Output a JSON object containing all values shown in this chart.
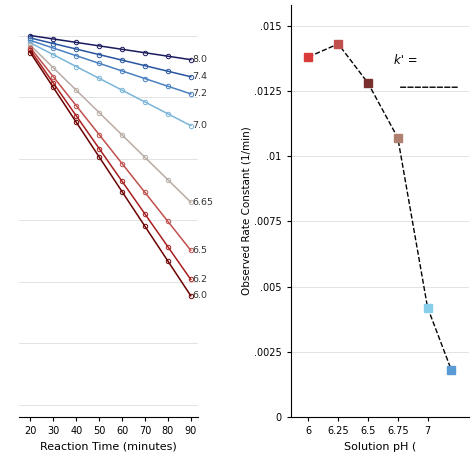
{
  "left_panel": {
    "xlabel": "Reaction Time (minutes)",
    "xlim": [
      15,
      93
    ],
    "ylim": [
      -3.1,
      0.25
    ],
    "xticks": [
      20,
      30,
      40,
      50,
      60,
      70,
      80,
      90
    ],
    "series": [
      {
        "label": "8.0",
        "color": "#1a1a5e",
        "slope": -0.0028,
        "y0": 0.0
      },
      {
        "label": "7.4",
        "color": "#2855a0",
        "slope": -0.0045,
        "y0": -0.02
      },
      {
        "label": "7.2",
        "color": "#4a80c0",
        "slope": -0.0062,
        "y0": -0.04
      },
      {
        "label": "7.0",
        "color": "#7ab5d8",
        "slope": -0.0096,
        "y0": -0.06
      },
      {
        "label": "6.65",
        "color": "#b8aca5",
        "slope": -0.0182,
        "y0": -0.08
      },
      {
        "label": "6.5",
        "color": "#c0504d",
        "slope": -0.0235,
        "y0": -0.1
      },
      {
        "label": "6.2",
        "color": "#a82020",
        "slope": -0.0266,
        "y0": -0.12
      },
      {
        "label": "6.0",
        "color": "#6b0000",
        "slope": -0.0282,
        "y0": -0.14
      }
    ],
    "x_points": [
      20,
      30,
      40,
      50,
      60,
      70,
      80,
      90
    ]
  },
  "right_panel": {
    "xlabel": "Solution pH (",
    "ylabel": "Observed Rate Constant (1/min)",
    "xlim": [
      5.85,
      7.35
    ],
    "ylim": [
      0,
      0.0158
    ],
    "xticks": [
      6,
      6.25,
      6.5,
      6.75,
      7
    ],
    "xticklabels": [
      "6",
      "6.25",
      "6.5",
      "6.75",
      "7"
    ],
    "yticks": [
      0,
      0.0025,
      0.005,
      0.0075,
      0.01,
      0.0125,
      0.015
    ],
    "yticklabels": [
      "0",
      ".0025",
      ".005",
      ".0075",
      ".01",
      ".0125",
      ".015"
    ],
    "annotation": "k' = ",
    "points": [
      {
        "ph": 6.0,
        "k": 0.0138,
        "color": "#d93b3b"
      },
      {
        "ph": 6.25,
        "k": 0.0143,
        "color": "#c0504d"
      },
      {
        "ph": 6.5,
        "k": 0.0128,
        "color": "#7b3030"
      },
      {
        "ph": 6.75,
        "k": 0.0107,
        "color": "#b08070"
      },
      {
        "ph": 7.0,
        "k": 0.0042,
        "color": "#87ceeb"
      },
      {
        "ph": 7.2,
        "k": 0.0018,
        "color": "#5b9bd5"
      }
    ]
  }
}
